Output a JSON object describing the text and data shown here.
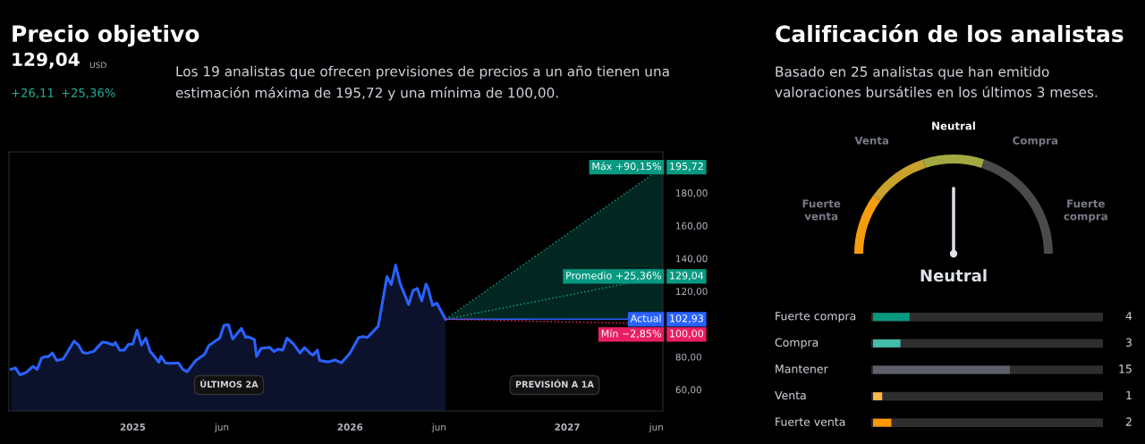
{
  "chart_data": [
    {
      "type": "line",
      "title": "Precio objetivo",
      "subtitle": "Los 19 analistas que ofrecen previsiones de precios a un año tienen una\nestimación máxima de 195,72 y una mínima de 100,00.",
      "annotations": [
        "129,04",
        "USD",
        "+26,11",
        "+25,36%",
        "ÚLTIMOS 2A",
        "PREVISIÓN A 1A"
      ],
      "xlim": [
        2024.43,
        2027.44
      ],
      "xticks": [
        2025,
        {
          "value": 2025.41,
          "label": "jun"
        },
        2026,
        {
          "value": 2026.41,
          "label": "jun"
        },
        2027,
        {
          "value": 2027.41,
          "label": "jun"
        }
      ],
      "ylim": [
        47,
        205
      ],
      "yticks": [
        {
          "value": 60,
          "label": "60,00"
        },
        {
          "value": 80,
          "label": "80,00"
        },
        {
          "value": 120,
          "label": "120,00"
        },
        {
          "value": 140,
          "label": "140,00"
        },
        {
          "value": 160,
          "label": "160,00"
        },
        {
          "value": 180,
          "label": "180,00"
        }
      ],
      "grid": false,
      "legend": "right",
      "series": [
        {
          "type": "area",
          "color": "#2962ff",
          "x": [
            2024.44,
            2024.46,
            2024.48,
            2024.51,
            2024.54,
            2024.56,
            2024.58,
            2024.6,
            2024.61,
            2024.63,
            2024.65,
            2024.68,
            2024.73,
            2024.75,
            2024.77,
            2024.79,
            2024.82,
            2024.86,
            2024.88,
            2024.91,
            2024.92,
            2024.94,
            2024.96,
            2024.98,
            2025.0,
            2025.02,
            2025.04,
            2025.06,
            2025.08,
            2025.09,
            2025.12,
            2025.13,
            2025.15,
            2025.17,
            2025.21,
            2025.23,
            2025.25,
            2025.29,
            2025.33,
            2025.35,
            2025.4,
            2025.42,
            2025.44,
            2025.46,
            2025.5,
            2025.52,
            2025.53,
            2025.56,
            2025.57,
            2025.59,
            2025.63,
            2025.65,
            2025.67,
            2025.69,
            2025.71,
            2025.74,
            2025.77,
            2025.79,
            2025.82,
            2025.83,
            2025.85,
            2025.86,
            2025.9,
            2025.93,
            2025.96,
            2026.0,
            2026.04,
            2026.06,
            2026.08,
            2026.13,
            2026.17,
            2026.19,
            2026.21,
            2026.23,
            2026.27,
            2026.29,
            2026.31,
            2026.33,
            2026.35,
            2026.36,
            2026.38,
            2026.4,
            2026.42,
            2026.44
          ],
          "values": [
            72.4,
            73.2,
            69.1,
            70.5,
            74.2,
            72.4,
            79.2,
            80.3,
            80.0,
            82.3,
            77.8,
            78.7,
            89.6,
            87.2,
            82.7,
            82.2,
            83.3,
            89.0,
            88.7,
            87.2,
            88.7,
            84.0,
            84.0,
            87.6,
            87.8,
            96.3,
            87.2,
            91.4,
            83.3,
            81.8,
            76.7,
            80.3,
            76.3,
            76.0,
            76.3,
            72.4,
            70.9,
            77.8,
            81.4,
            86.9,
            91.4,
            99.2,
            99.6,
            90.9,
            97.4,
            91.8,
            92.3,
            90.5,
            80.2,
            85.1,
            85.8,
            83.3,
            84.7,
            84.0,
            91.4,
            87.8,
            82.3,
            85.6,
            81.8,
            81.1,
            84.1,
            77.8,
            76.9,
            78.1,
            76.3,
            82.3,
            91.8,
            92.3,
            91.8,
            98.7,
            129.0,
            124.1,
            135.9,
            125.0,
            111.9,
            120.5,
            121.7,
            114.1,
            124.4,
            121.4,
            111.4,
            112.7,
            107.8,
            102.93
          ]
        },
        {
          "name": "Máx +90,15%",
          "type": "line",
          "line_style": "dotted",
          "color": "#089981",
          "x": [
            2026.44,
            2027.44
          ],
          "values": [
            102.93,
            195.72
          ],
          "lower": [
            102.93,
            102.93
          ],
          "upper": [
            102.93,
            195.72
          ],
          "value_labels": [
            null,
            "195,72"
          ]
        },
        {
          "name": "Promedio +25,36%",
          "type": "line",
          "line_style": "dotted",
          "color": "#089981",
          "x": [
            2026.44,
            2027.44
          ],
          "values": [
            102.93,
            129.04
          ],
          "value_labels": [
            null,
            "129,04"
          ]
        },
        {
          "name": "Actual",
          "type": "line",
          "line_style": "solid",
          "color": "#2962ff",
          "x": [
            2026.44,
            2027.44
          ],
          "values": [
            102.93,
            102.93
          ],
          "value_labels": [
            null,
            "102,93"
          ]
        },
        {
          "name": "Mín −2,85%",
          "type": "line",
          "line_style": "dotted",
          "color": "#e91e63",
          "x": [
            2026.44,
            2027.44
          ],
          "values": [
            102.93,
            100.0
          ],
          "value_labels": [
            null,
            "100,00"
          ]
        }
      ]
    },
    {
      "type": "donut",
      "title": "Calificación de los analistas",
      "subtitle": "Basado en 25 analistas que han emitido\nvaloraciones bursátiles en los últimos 3 meses.",
      "categories": [
        "Fuerte venta",
        "Venta",
        "Neutral",
        "Compra",
        "Fuerte compra"
      ],
      "values": [
        20,
        20,
        20,
        20,
        20
      ],
      "colors": [
        "#f59d0c",
        "#c9a22c",
        "#a3a843",
        "#4a4a4a",
        "#4a4a4a"
      ],
      "needle": "Neutral",
      "annotations": [
        "Neutral"
      ]
    },
    {
      "type": "bar",
      "orientation": "horizontal",
      "categories": [
        "Fuerte compra",
        "Compra",
        "Mantener",
        "Venta",
        "Fuerte venta"
      ],
      "values": [
        4,
        3,
        15,
        1,
        2
      ],
      "colors": [
        "#089981",
        "#42bda8",
        "#5d606b",
        "#ffb74d",
        "#ff9800"
      ],
      "data_labels": true
    }
  ]
}
